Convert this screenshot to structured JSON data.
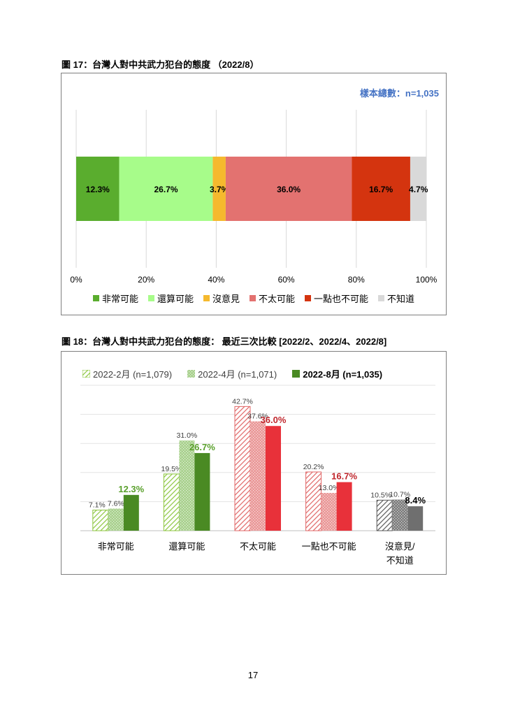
{
  "figure17": {
    "title": "圖 17：台灣人對中共武力犯台的態度 （2022/8）",
    "sample_note": "樣本總數：n=1,035"
  },
  "figure18": {
    "title": "圖 18：台灣人對中共武力犯台的態度：  最近三次比較  [2022/2、2022/4、2022/8]"
  },
  "page_number": "17",
  "chart_data": [
    {
      "type": "bar",
      "orientation": "horizontal-stacked-100",
      "series": [
        {
          "name": "非常可能",
          "value": 12.3,
          "label": "12.3%",
          "color": "#5aad2e"
        },
        {
          "name": "還算可能",
          "value": 26.7,
          "label": "26.7%",
          "color": "#a7fc8a"
        },
        {
          "name": "沒意見",
          "value": 3.7,
          "label": "3.7%",
          "color": "#f5b92e"
        },
        {
          "name": "不太可能",
          "value": 36.0,
          "label": "36.0%",
          "color": "#e37270"
        },
        {
          "name": "一點也不可能",
          "value": 16.7,
          "label": "16.7%",
          "color": "#d4340f"
        },
        {
          "name": "不知道",
          "value": 4.7,
          "label": "4.7%",
          "color": "#d9d9d9"
        }
      ],
      "xlim": [
        0,
        100
      ],
      "xticks": [
        "0%",
        "20%",
        "40%",
        "60%",
        "80%",
        "100%"
      ],
      "grid": true,
      "legend": "bottom"
    },
    {
      "type": "bar",
      "orientation": "vertical-grouped",
      "categories": [
        "非常可能",
        "還算可能",
        "不太可能",
        "一點也不可能",
        "沒意見/\n不知道"
      ],
      "series": [
        {
          "name": "2022-2月 (n=1,079)",
          "values": [
            7.1,
            19.5,
            42.7,
            20.2,
            10.5
          ],
          "labels": [
            "7.1%",
            "19.5%",
            "42.7%",
            "20.2%",
            "10.5%"
          ],
          "style": "hatched"
        },
        {
          "name": "2022-4月 (n=1,071)",
          "values": [
            7.6,
            31.0,
            37.6,
            13.0,
            10.7
          ],
          "labels": [
            "7.6%",
            "31.0%",
            "37.6%",
            "13.0%",
            "10.7%"
          ],
          "style": "dotted"
        },
        {
          "name": "2022-8月 (n=1,035)",
          "values": [
            12.3,
            26.7,
            36.0,
            16.7,
            8.4
          ],
          "labels": [
            "12.3%",
            "26.7%",
            "36.0%",
            "16.7%",
            "8.4%"
          ],
          "style": "solid"
        }
      ],
      "category_colors": {
        "light": [
          "#8dc63f",
          "#8dc63f",
          "#e06666",
          "#e06666",
          "#595959"
        ],
        "medium": [
          "#a9d18e",
          "#a9d18e",
          "#ea9999",
          "#ea9999",
          "#7f7f7f"
        ],
        "solid": [
          "#4a8a23",
          "#4a8a23",
          "#e8313a",
          "#e8313a",
          "#6f6f6f"
        ],
        "label_emphasis": [
          "#5aa02c",
          "#5aa02c",
          "#c0272d",
          "#c0272d",
          "#000000"
        ]
      },
      "ylim": [
        0,
        50
      ],
      "grid": true,
      "legend": "top"
    }
  ]
}
